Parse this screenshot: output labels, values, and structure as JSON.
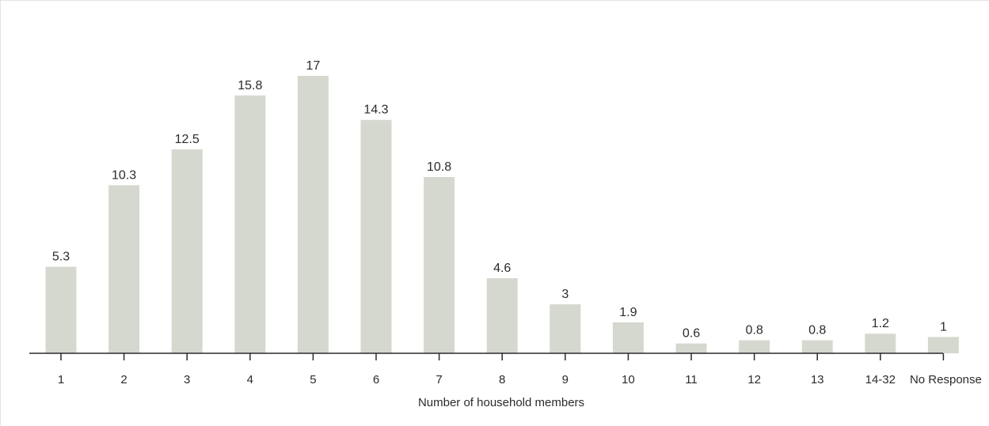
{
  "chart_data": {
    "type": "bar",
    "categories": [
      "1",
      "2",
      "3",
      "4",
      "5",
      "6",
      "7",
      "8",
      "9",
      "10",
      "11",
      "12",
      "13",
      "14-32",
      "No Response"
    ],
    "values": [
      5.3,
      10.3,
      12.5,
      15.8,
      17,
      14.3,
      10.8,
      4.6,
      3,
      1.9,
      0.6,
      0.8,
      0.8,
      1.2,
      1
    ],
    "value_labels": [
      "5.3",
      "10.3",
      "12.5",
      "15.8",
      "17",
      "14.3",
      "10.8",
      "4.6",
      "3",
      "1.9",
      "0.6",
      "0.8",
      "0.8",
      "1.2",
      "1"
    ],
    "xlabel": "Number of household members",
    "ylim": [
      0,
      17
    ],
    "grid": false,
    "bar_color": "#d5d8cf",
    "axis_color": "#2b2b2b"
  }
}
